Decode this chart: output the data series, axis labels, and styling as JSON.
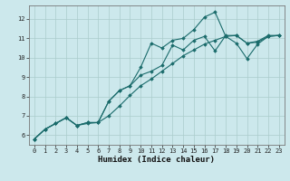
{
  "xlabel": "Humidex (Indice chaleur)",
  "ylabel": "",
  "bg_color": "#cce8ec",
  "grid_color": "#aacccc",
  "line_color": "#1a6b6b",
  "xlim": [
    -0.5,
    23.5
  ],
  "ylim": [
    5.5,
    12.7
  ],
  "xticks": [
    0,
    1,
    2,
    3,
    4,
    5,
    6,
    7,
    8,
    9,
    10,
    11,
    12,
    13,
    14,
    15,
    16,
    17,
    18,
    19,
    20,
    21,
    22,
    23
  ],
  "yticks": [
    6,
    7,
    8,
    9,
    10,
    11,
    12
  ],
  "line1_y": [
    5.8,
    6.3,
    6.6,
    6.9,
    6.5,
    6.6,
    6.65,
    7.0,
    7.5,
    8.05,
    8.55,
    8.9,
    9.3,
    9.7,
    10.1,
    10.4,
    10.7,
    10.9,
    11.1,
    11.15,
    10.75,
    10.8,
    11.1,
    11.15
  ],
  "line2_y": [
    5.8,
    6.3,
    6.6,
    6.9,
    6.5,
    6.65,
    6.65,
    7.75,
    8.3,
    8.55,
    9.1,
    9.3,
    9.6,
    10.65,
    10.4,
    10.9,
    11.1,
    10.35,
    11.15,
    11.15,
    10.75,
    10.85,
    11.15,
    11.15
  ],
  "line3_y": [
    5.8,
    6.3,
    6.6,
    6.9,
    6.5,
    6.65,
    6.65,
    7.75,
    8.3,
    8.55,
    9.5,
    10.75,
    10.5,
    10.9,
    11.0,
    11.45,
    12.1,
    12.35,
    11.1,
    10.75,
    9.95,
    10.7,
    11.1,
    11.15
  ],
  "tick_fontsize": 5,
  "xlabel_fontsize": 6.5
}
